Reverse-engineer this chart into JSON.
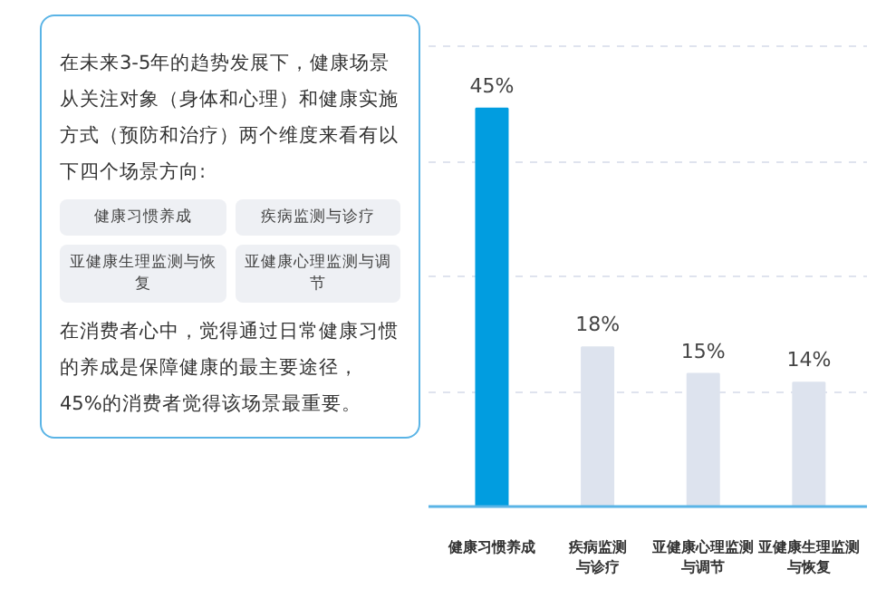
{
  "chart_data": [
    {
      "type": "other",
      "annotations": [
        "在未来3-5年的趋势发展下，健康场景从关注对象（身体和心理）和健康实施方式（预防和治疗）两个维度来看有以下四个场景方向:",
        "健康习惯养成",
        "疾病监测与诊疗",
        "亚健康生理监测与恢复",
        "亚健康心理监测与调节",
        "在消费者心中，觉得通过日常健康习惯的养成是保障健康的最主要途径，45%的消费者觉得该场景最重要。"
      ]
    },
    {
      "type": "bar",
      "categories": [
        "健康习惯养成",
        "疾病监测与诊疗",
        "亚健康心理监测与调节",
        "亚健康生理监测与恢复"
      ],
      "values": [
        45,
        18,
        15,
        14
      ],
      "colors": [
        "#019de0",
        "#dde3ee",
        "#dde3ee",
        "#dde3ee"
      ],
      "value_labels": [
        "45%",
        "18%",
        "15%",
        "14%"
      ],
      "yticks": [
        {
          "value": 13,
          "label": null
        },
        {
          "value": 26,
          "label": null
        },
        {
          "value": 39,
          "label": null
        },
        {
          "value": 52,
          "label": null
        }
      ],
      "grid": "y"
    }
  ]
}
